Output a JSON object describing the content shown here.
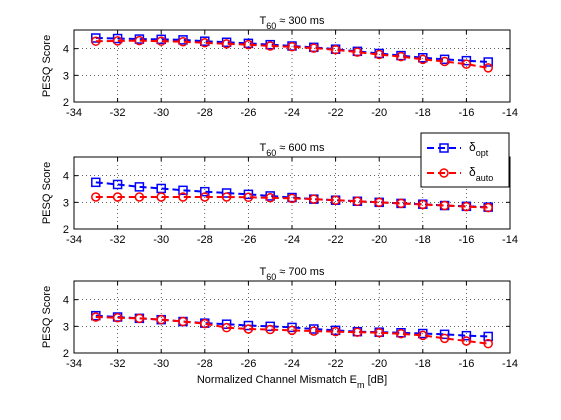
{
  "chart_data": [
    {
      "type": "line",
      "title_main": "T",
      "title_sub": "60",
      "title_rest": " ≈ 300 ms",
      "ylabel": "PESQ Score",
      "xlabel_main": "",
      "xlabel_sub": "",
      "xlabel_rest": "",
      "xlim": [
        -34,
        -14
      ],
      "ylim": [
        2,
        4.7
      ],
      "xticks": [
        -34,
        -32,
        -30,
        -28,
        -26,
        -24,
        -22,
        -20,
        -18,
        -16,
        -14
      ],
      "yticks": [
        2,
        3,
        4
      ],
      "grid": true,
      "show_legend": false,
      "x": [
        -33,
        -32,
        -31,
        -30,
        -29,
        -28,
        -27,
        -26,
        -25,
        -24,
        -23,
        -22,
        -21,
        -20,
        -19,
        -18,
        -17,
        -16,
        -15
      ],
      "series": [
        {
          "name_main": "δ",
          "name_sub": "opt",
          "color": "#0000ff",
          "marker": "square",
          "values": [
            4.4,
            4.38,
            4.36,
            4.35,
            4.33,
            4.28,
            4.24,
            4.2,
            4.15,
            4.1,
            4.05,
            3.98,
            3.9,
            3.82,
            3.74,
            3.66,
            3.6,
            3.55,
            3.5
          ]
        },
        {
          "name_main": "δ",
          "name_sub": "auto",
          "color": "#ff0000",
          "marker": "circle",
          "values": [
            4.28,
            4.29,
            4.3,
            4.28,
            4.26,
            4.22,
            4.18,
            4.15,
            4.1,
            4.07,
            4.02,
            3.96,
            3.87,
            3.78,
            3.7,
            3.6,
            3.52,
            3.42,
            3.28
          ]
        }
      ]
    },
    {
      "type": "line",
      "title_main": "T",
      "title_sub": "60",
      "title_rest": " ≈ 600 ms",
      "ylabel": "PESQ Score",
      "xlabel_main": "",
      "xlabel_sub": "",
      "xlabel_rest": "",
      "xlim": [
        -34,
        -14
      ],
      "ylim": [
        2,
        4.7
      ],
      "xticks": [
        -34,
        -32,
        -30,
        -28,
        -26,
        -24,
        -22,
        -20,
        -18,
        -16,
        -14
      ],
      "yticks": [
        2,
        3,
        4
      ],
      "grid": true,
      "show_legend": true,
      "legend_position": "top-right",
      "x": [
        -33,
        -32,
        -31,
        -30,
        -29,
        -28,
        -27,
        -26,
        -25,
        -24,
        -23,
        -22,
        -21,
        -20,
        -19,
        -18,
        -17,
        -16,
        -15
      ],
      "series": [
        {
          "name_main": "δ",
          "name_sub": "opt",
          "color": "#0000ff",
          "marker": "square",
          "values": [
            3.75,
            3.67,
            3.58,
            3.52,
            3.45,
            3.4,
            3.35,
            3.3,
            3.24,
            3.18,
            3.12,
            3.08,
            3.04,
            3.0,
            2.96,
            2.93,
            2.88,
            2.85,
            2.82
          ]
        },
        {
          "name_main": "δ",
          "name_sub": "auto",
          "color": "#ff0000",
          "marker": "circle",
          "values": [
            3.2,
            3.2,
            3.2,
            3.2,
            3.2,
            3.2,
            3.2,
            3.19,
            3.17,
            3.15,
            3.12,
            3.08,
            3.04,
            3.0,
            2.96,
            2.92,
            2.88,
            2.84,
            2.8
          ]
        }
      ]
    },
    {
      "type": "line",
      "title_main": "T",
      "title_sub": "60",
      "title_rest": " ≈ 700 ms",
      "ylabel": "PESQ Score",
      "xlabel_main": "Normalized Channel Mismatch E",
      "xlabel_sub": "m",
      "xlabel_rest": " [dB]",
      "xlim": [
        -34,
        -14
      ],
      "ylim": [
        2,
        4.7
      ],
      "xticks": [
        -34,
        -32,
        -30,
        -28,
        -26,
        -24,
        -22,
        -20,
        -18,
        -16,
        -14
      ],
      "yticks": [
        2,
        3,
        4
      ],
      "grid": true,
      "show_legend": false,
      "x": [
        -33,
        -32,
        -31,
        -30,
        -29,
        -28,
        -27,
        -26,
        -25,
        -24,
        -23,
        -22,
        -21,
        -20,
        -19,
        -18,
        -17,
        -16,
        -15
      ],
      "series": [
        {
          "name_main": "δ",
          "name_sub": "opt",
          "color": "#0000ff",
          "marker": "square",
          "values": [
            3.4,
            3.35,
            3.3,
            3.25,
            3.18,
            3.12,
            3.08,
            3.03,
            3.0,
            2.96,
            2.9,
            2.85,
            2.8,
            2.78,
            2.76,
            2.73,
            2.7,
            2.65,
            2.62
          ]
        },
        {
          "name_main": "δ",
          "name_sub": "auto",
          "color": "#ff0000",
          "marker": "circle",
          "values": [
            3.35,
            3.32,
            3.3,
            3.25,
            3.18,
            3.1,
            2.95,
            2.9,
            2.88,
            2.85,
            2.82,
            2.8,
            2.78,
            2.76,
            2.72,
            2.66,
            2.55,
            2.45,
            2.35
          ]
        }
      ]
    }
  ]
}
